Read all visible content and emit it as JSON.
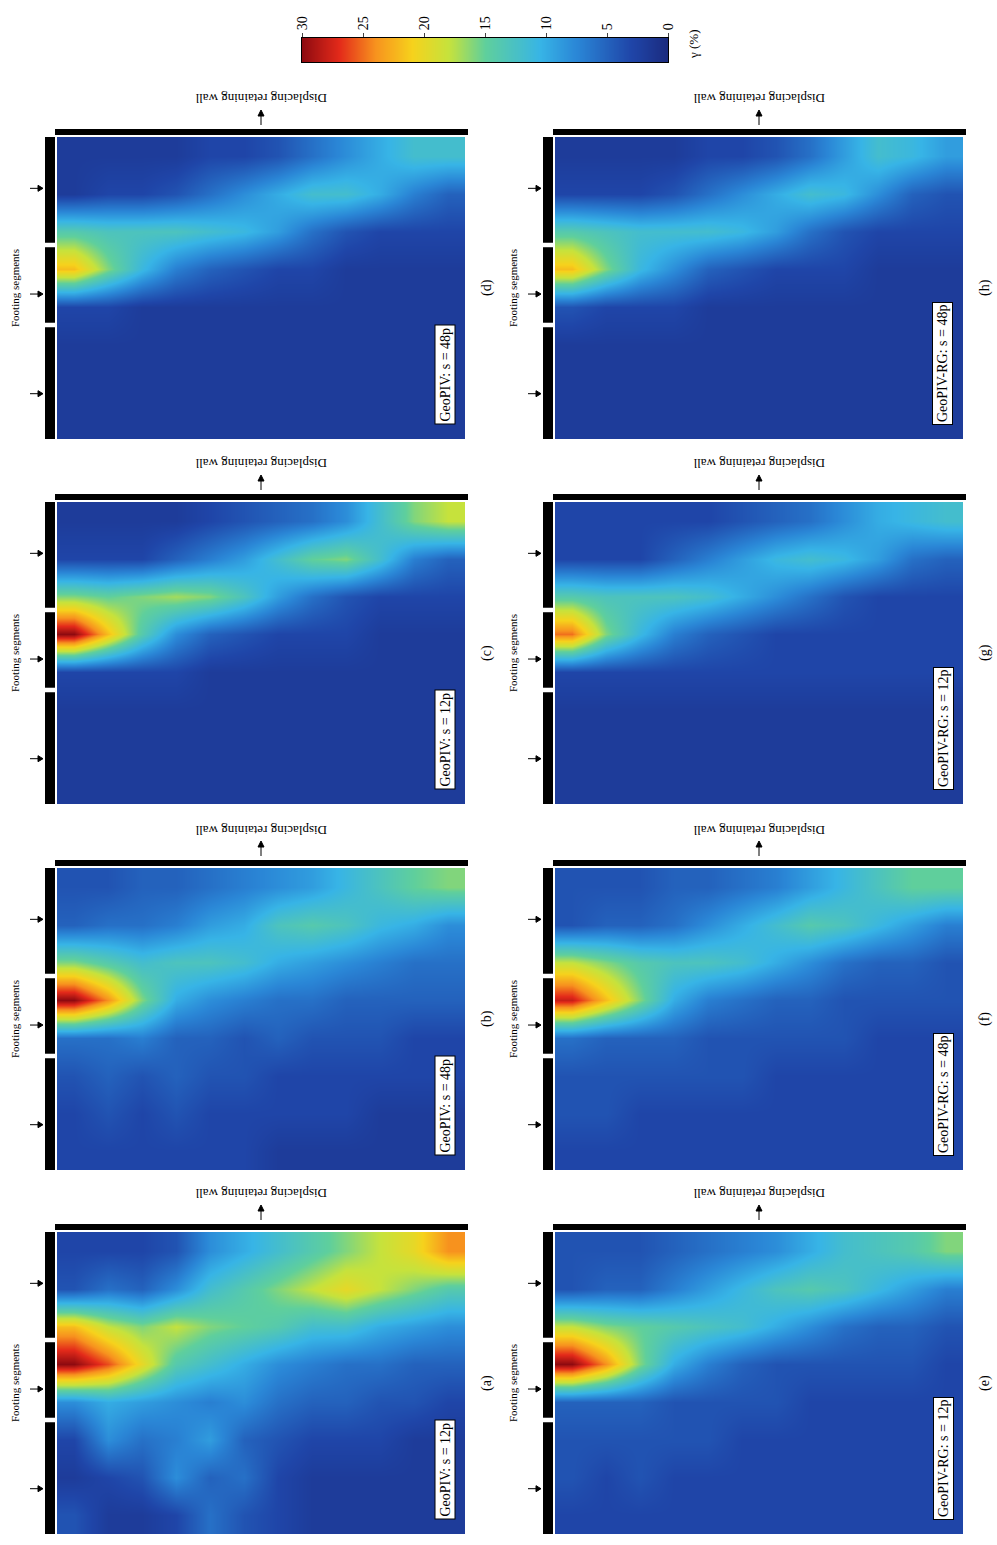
{
  "chart_data": {
    "type": "heatmap",
    "tick_labels": false,
    "footing_label": "Footing segments",
    "wall_label": "Displacing retaining wall",
    "colorbar": {
      "title": "γ (%)",
      "range": [
        0,
        30
      ],
      "ticks": [
        0,
        5,
        10,
        15,
        20,
        25,
        30
      ]
    },
    "panels": [
      {
        "label": "(a)",
        "title": "GeoPIV: s = 12p",
        "z": [
          [
            3,
            3,
            3,
            4,
            8,
            10,
            12,
            14,
            16,
            18,
            20,
            24
          ],
          [
            4,
            6,
            5,
            8,
            12,
            14,
            16,
            18,
            20,
            18,
            16,
            14
          ],
          [
            22,
            18,
            16,
            18,
            16,
            15,
            14,
            12,
            12,
            10,
            9,
            8
          ],
          [
            30,
            26,
            20,
            14,
            12,
            10,
            8,
            7,
            6,
            6,
            5,
            5
          ],
          [
            8,
            10,
            9,
            8,
            7,
            8,
            6,
            5,
            5,
            4,
            4,
            3
          ],
          [
            3,
            8,
            6,
            7,
            9,
            5,
            4,
            3,
            3,
            3,
            2,
            2
          ],
          [
            2,
            3,
            4,
            8,
            5,
            6,
            3,
            2,
            2,
            2,
            2,
            2
          ],
          [
            4,
            2,
            2,
            3,
            6,
            4,
            3,
            2,
            2,
            2,
            2,
            2
          ]
        ]
      },
      {
        "label": "(b)",
        "title": "GeoPIV: s = 48p",
        "z": [
          [
            4,
            4,
            5,
            5,
            6,
            7,
            8,
            9,
            11,
            13,
            15,
            16
          ],
          [
            5,
            6,
            6,
            7,
            9,
            10,
            13,
            14,
            13,
            11,
            10,
            8
          ],
          [
            16,
            14,
            12,
            13,
            13,
            12,
            10,
            9,
            8,
            7,
            6,
            6
          ],
          [
            30,
            24,
            16,
            10,
            8,
            7,
            6,
            6,
            5,
            5,
            5,
            5
          ],
          [
            6,
            6,
            7,
            5,
            5,
            4,
            5,
            4,
            4,
            4,
            3,
            3
          ],
          [
            4,
            5,
            4,
            5,
            4,
            4,
            3,
            3,
            3,
            3,
            3,
            3
          ],
          [
            3,
            4,
            3,
            4,
            3,
            3,
            3,
            3,
            3,
            2,
            2,
            2
          ],
          [
            3,
            3,
            3,
            3,
            3,
            3,
            2,
            2,
            2,
            2,
            2,
            2
          ]
        ]
      },
      {
        "label": "(c)",
        "title": "GeoPIV: s = 12p",
        "z": [
          [
            2,
            2,
            2,
            2,
            3,
            4,
            5,
            6,
            8,
            12,
            16,
            18
          ],
          [
            3,
            3,
            3,
            5,
            7,
            9,
            12,
            15,
            16,
            12,
            7,
            5
          ],
          [
            16,
            15,
            16,
            17,
            16,
            13,
            9,
            6,
            4,
            3,
            3,
            3
          ],
          [
            30,
            22,
            14,
            8,
            5,
            4,
            3,
            3,
            3,
            2,
            2,
            2
          ],
          [
            3,
            3,
            3,
            3,
            2,
            2,
            2,
            2,
            2,
            2,
            2,
            2
          ],
          [
            2,
            2,
            2,
            2,
            2,
            2,
            2,
            2,
            2,
            2,
            2,
            2
          ],
          [
            2,
            2,
            2,
            2,
            2,
            2,
            2,
            2,
            2,
            2,
            2,
            2
          ],
          [
            2,
            2,
            2,
            2,
            2,
            2,
            2,
            2,
            2,
            2,
            2,
            2
          ]
        ]
      },
      {
        "label": "(d)",
        "title": "GeoPIV: s = 48p",
        "z": [
          [
            2,
            2,
            2,
            2,
            3,
            3,
            4,
            6,
            8,
            10,
            12,
            12
          ],
          [
            2,
            3,
            3,
            4,
            6,
            8,
            10,
            12,
            12,
            10,
            7,
            5
          ],
          [
            14,
            13,
            13,
            13,
            12,
            11,
            9,
            6,
            4,
            3,
            3,
            3
          ],
          [
            22,
            16,
            11,
            7,
            5,
            4,
            3,
            3,
            2,
            2,
            2,
            2
          ],
          [
            3,
            3,
            2,
            2,
            2,
            2,
            2,
            2,
            2,
            2,
            2,
            2
          ],
          [
            2,
            2,
            2,
            2,
            2,
            2,
            2,
            2,
            2,
            2,
            2,
            2
          ],
          [
            2,
            2,
            2,
            2,
            2,
            2,
            2,
            2,
            2,
            2,
            2,
            2
          ],
          [
            2,
            2,
            2,
            2,
            2,
            2,
            2,
            2,
            2,
            2,
            2,
            2
          ]
        ]
      },
      {
        "label": "(e)",
        "title": "GeoPIV-RG: s = 12p",
        "z": [
          [
            4,
            4,
            4,
            5,
            6,
            7,
            8,
            10,
            12,
            13,
            14,
            16
          ],
          [
            4,
            5,
            5,
            7,
            9,
            11,
            13,
            14,
            13,
            11,
            9,
            7
          ],
          [
            18,
            16,
            15,
            14,
            13,
            12,
            10,
            8,
            6,
            5,
            5,
            4
          ],
          [
            30,
            24,
            16,
            10,
            7,
            5,
            4,
            4,
            4,
            4,
            4,
            3
          ],
          [
            5,
            5,
            5,
            4,
            4,
            4,
            4,
            3,
            3,
            3,
            3,
            3
          ],
          [
            4,
            4,
            4,
            4,
            4,
            3,
            3,
            3,
            3,
            3,
            3,
            3
          ],
          [
            4,
            3,
            4,
            3,
            3,
            3,
            3,
            3,
            3,
            3,
            3,
            3
          ],
          [
            3,
            3,
            3,
            3,
            3,
            3,
            3,
            3,
            3,
            3,
            3,
            3
          ]
        ]
      },
      {
        "label": "(f)",
        "title": "GeoPIV-RG: s = 48p",
        "z": [
          [
            4,
            4,
            4,
            5,
            5,
            6,
            7,
            9,
            11,
            13,
            15,
            15
          ],
          [
            4,
            5,
            5,
            6,
            8,
            10,
            12,
            14,
            13,
            11,
            9,
            7
          ],
          [
            18,
            16,
            14,
            13,
            13,
            12,
            10,
            8,
            6,
            5,
            5,
            4
          ],
          [
            28,
            22,
            16,
            10,
            7,
            6,
            5,
            5,
            4,
            4,
            4,
            4
          ],
          [
            6,
            5,
            5,
            5,
            4,
            4,
            4,
            4,
            4,
            3,
            3,
            3
          ],
          [
            4,
            4,
            4,
            4,
            4,
            4,
            3,
            3,
            3,
            3,
            3,
            3
          ],
          [
            4,
            4,
            3,
            3,
            3,
            3,
            3,
            3,
            3,
            3,
            3,
            3
          ],
          [
            3,
            3,
            3,
            3,
            3,
            3,
            3,
            3,
            3,
            3,
            3,
            3
          ]
        ]
      },
      {
        "label": "(g)",
        "title": "GeoPIV-RG: s = 12p",
        "z": [
          [
            3,
            3,
            3,
            3,
            3,
            4,
            5,
            6,
            8,
            10,
            11,
            12
          ],
          [
            3,
            3,
            3,
            5,
            7,
            9,
            11,
            12,
            11,
            9,
            6,
            5
          ],
          [
            14,
            13,
            13,
            13,
            12,
            10,
            8,
            6,
            4,
            3,
            3,
            3
          ],
          [
            25,
            16,
            11,
            7,
            5,
            4,
            3,
            3,
            3,
            3,
            3,
            3
          ],
          [
            3,
            3,
            3,
            3,
            3,
            3,
            3,
            3,
            3,
            3,
            3,
            3
          ],
          [
            2,
            2,
            2,
            2,
            2,
            2,
            2,
            2,
            2,
            2,
            2,
            2
          ],
          [
            2,
            2,
            2,
            2,
            2,
            2,
            2,
            2,
            2,
            2,
            2,
            2
          ],
          [
            2,
            2,
            2,
            2,
            2,
            2,
            2,
            2,
            2,
            2,
            2,
            2
          ]
        ]
      },
      {
        "label": "(h)",
        "title": "GeoPIV-RG: s = 48p",
        "z": [
          [
            2,
            2,
            2,
            2,
            3,
            3,
            4,
            6,
            9,
            12,
            11,
            9
          ],
          [
            3,
            3,
            3,
            4,
            6,
            8,
            10,
            12,
            11,
            8,
            5,
            4
          ],
          [
            14,
            13,
            12,
            12,
            12,
            11,
            9,
            6,
            4,
            3,
            3,
            3
          ],
          [
            22,
            16,
            11,
            8,
            5,
            4,
            3,
            3,
            3,
            2,
            2,
            2
          ],
          [
            4,
            3,
            3,
            3,
            2,
            2,
            2,
            2,
            2,
            2,
            2,
            2
          ],
          [
            2,
            2,
            2,
            2,
            2,
            2,
            2,
            2,
            2,
            2,
            2,
            2
          ],
          [
            2,
            2,
            2,
            2,
            2,
            2,
            2,
            2,
            2,
            2,
            2,
            2
          ],
          [
            2,
            2,
            2,
            2,
            2,
            2,
            2,
            2,
            2,
            2,
            2,
            2
          ]
        ]
      }
    ]
  }
}
